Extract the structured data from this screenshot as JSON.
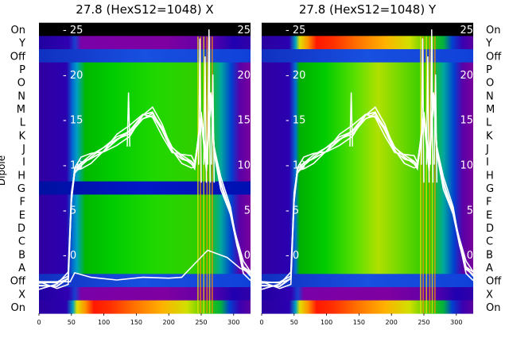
{
  "chart_data": [
    {
      "type": "heatmap",
      "title": "27.8 (HexS12=1048) X",
      "ylabel": "Dipole",
      "xticks": [
        0,
        50,
        100,
        150,
        200,
        250,
        300
      ],
      "xlim": [
        0,
        326
      ],
      "overlay_yticks": [
        0,
        5,
        10,
        15,
        20,
        25
      ],
      "overlay_ylim": [
        -6.5,
        25.8
      ],
      "rows": [
        "On",
        "Y",
        "Off",
        "P",
        "O",
        "N",
        "M",
        "L",
        "K",
        "J",
        "I",
        "H",
        "G",
        "F",
        "E",
        "D",
        "C",
        "B",
        "A",
        "Off",
        "X",
        "On"
      ],
      "row_labels_side": "left",
      "colormap": "nipy_spectral",
      "overlay_color": "#ffffff",
      "grid": false
    },
    {
      "type": "heatmap",
      "title": "27.8 (HexS12=1048) Y",
      "xticks": [
        0,
        50,
        100,
        150,
        200,
        250,
        300
      ],
      "xlim": [
        0,
        326
      ],
      "overlay_yticks": [
        0,
        5,
        10,
        15,
        20,
        25
      ],
      "overlay_ylim": [
        -6.5,
        25.8
      ],
      "rows": [
        "On",
        "Y",
        "Off",
        "P",
        "O",
        "N",
        "M",
        "L",
        "K",
        "J",
        "I",
        "H",
        "G",
        "F",
        "E",
        "D",
        "C",
        "B",
        "A",
        "Off",
        "X",
        "On"
      ],
      "row_labels_side": "right",
      "colormap": "nipy_spectral",
      "overlay_color": "#ffffff",
      "grid": false
    }
  ]
}
